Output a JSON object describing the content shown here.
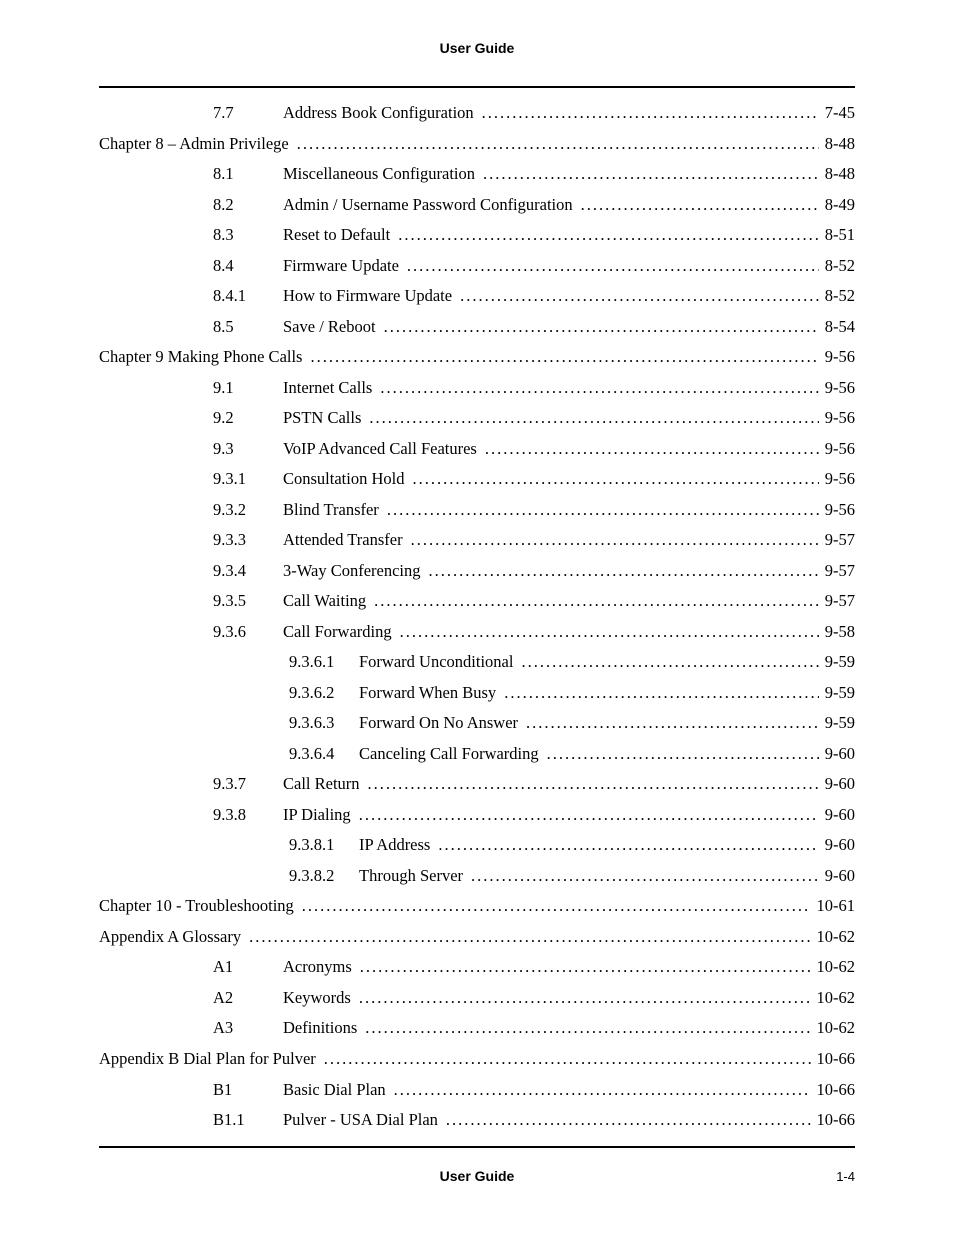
{
  "header": "User Guide",
  "footer_center": "User Guide",
  "footer_right": "1-4",
  "entries": [
    {
      "indent": 1,
      "num": "7.7",
      "title": "Address Book Configuration",
      "page": "7-45"
    },
    {
      "indent": 0,
      "lead": "Chapter 8   – Admin Privilege",
      "page": "8-48"
    },
    {
      "indent": 1,
      "num": "8.1",
      "title": "Miscellaneous Configuration",
      "page": "8-48"
    },
    {
      "indent": 1,
      "num": "8.2",
      "title": "Admin / Username Password Configuration",
      "page": "8-49"
    },
    {
      "indent": 1,
      "num": "8.3",
      "title": "Reset to Default",
      "page": "8-51"
    },
    {
      "indent": 1,
      "num": "8.4",
      "title": "Firmware Update",
      "page": "8-52"
    },
    {
      "indent": 1,
      "num": "8.4.1",
      "title": "How to Firmware Update",
      "page": "8-52"
    },
    {
      "indent": 1,
      "num": "8.5",
      "title": "Save / Reboot",
      "page": "8-54"
    },
    {
      "indent": 0,
      "lead": "Chapter 9   Making Phone Calls",
      "page": "9-56"
    },
    {
      "indent": 1,
      "num": "9.1",
      "title": "Internet Calls",
      "page": "9-56"
    },
    {
      "indent": 1,
      "num": "9.2",
      "title": "PSTN Calls",
      "page": "9-56"
    },
    {
      "indent": 1,
      "num": "9.3",
      "title": "VoIP Advanced Call Features",
      "page": "9-56"
    },
    {
      "indent": 1,
      "num": "9.3.1",
      "title": "Consultation Hold",
      "page": "9-56"
    },
    {
      "indent": 1,
      "num": "9.3.2",
      "title": "Blind Transfer",
      "page": "9-56"
    },
    {
      "indent": 1,
      "num": "9.3.3",
      "title": "Attended Transfer",
      "page": "9-57"
    },
    {
      "indent": 1,
      "num": "9.3.4",
      "title": "3-Way Conferencing",
      "page": "9-57"
    },
    {
      "indent": 1,
      "num": "9.3.5",
      "title": "Call Waiting",
      "page": "9-57"
    },
    {
      "indent": 1,
      "num": "9.3.6",
      "title": "Call Forwarding",
      "page": "9-58"
    },
    {
      "indent": 2,
      "num": "9.3.6.1",
      "title": "Forward Unconditional",
      "page": "9-59"
    },
    {
      "indent": 2,
      "num": "9.3.6.2",
      "title": "Forward When Busy",
      "page": "9-59"
    },
    {
      "indent": 2,
      "num": "9.3.6.3",
      "title": "Forward On No Answer",
      "page": "9-59"
    },
    {
      "indent": 2,
      "num": "9.3.6.4",
      "title": "Canceling Call Forwarding",
      "page": "9-60"
    },
    {
      "indent": 1,
      "num": "9.3.7",
      "title": "Call Return",
      "page": "9-60"
    },
    {
      "indent": 1,
      "num": "9.3.8",
      "title": "IP Dialing",
      "page": "9-60"
    },
    {
      "indent": 2,
      "num": "9.3.8.1",
      "title": "IP Address",
      "page": "9-60"
    },
    {
      "indent": 2,
      "num": "9.3.8.2",
      "title": "Through Server",
      "page": "9-60"
    },
    {
      "indent": 0,
      "lead": "Chapter 10 - Troubleshooting",
      "page": "10-61"
    },
    {
      "indent": 0,
      "lead": "Appendix A     Glossary",
      "page": "10-62"
    },
    {
      "indent": 1,
      "num": "A1",
      "title": "Acronyms",
      "page": "10-62"
    },
    {
      "indent": 1,
      "num": "A2",
      "title": "Keywords",
      "page": "10-62"
    },
    {
      "indent": 1,
      "num": "A3",
      "title": "Definitions",
      "page": "10-62"
    },
    {
      "indent": 0,
      "lead": "Appendix B     Dial Plan for Pulver",
      "page": "10-66"
    },
    {
      "indent": 1,
      "num": "B1",
      "title": "Basic Dial Plan",
      "page": "10-66"
    },
    {
      "indent": 1,
      "num": "B1.1",
      "title": "Pulver - USA Dial Plan",
      "page": "10-66"
    }
  ]
}
